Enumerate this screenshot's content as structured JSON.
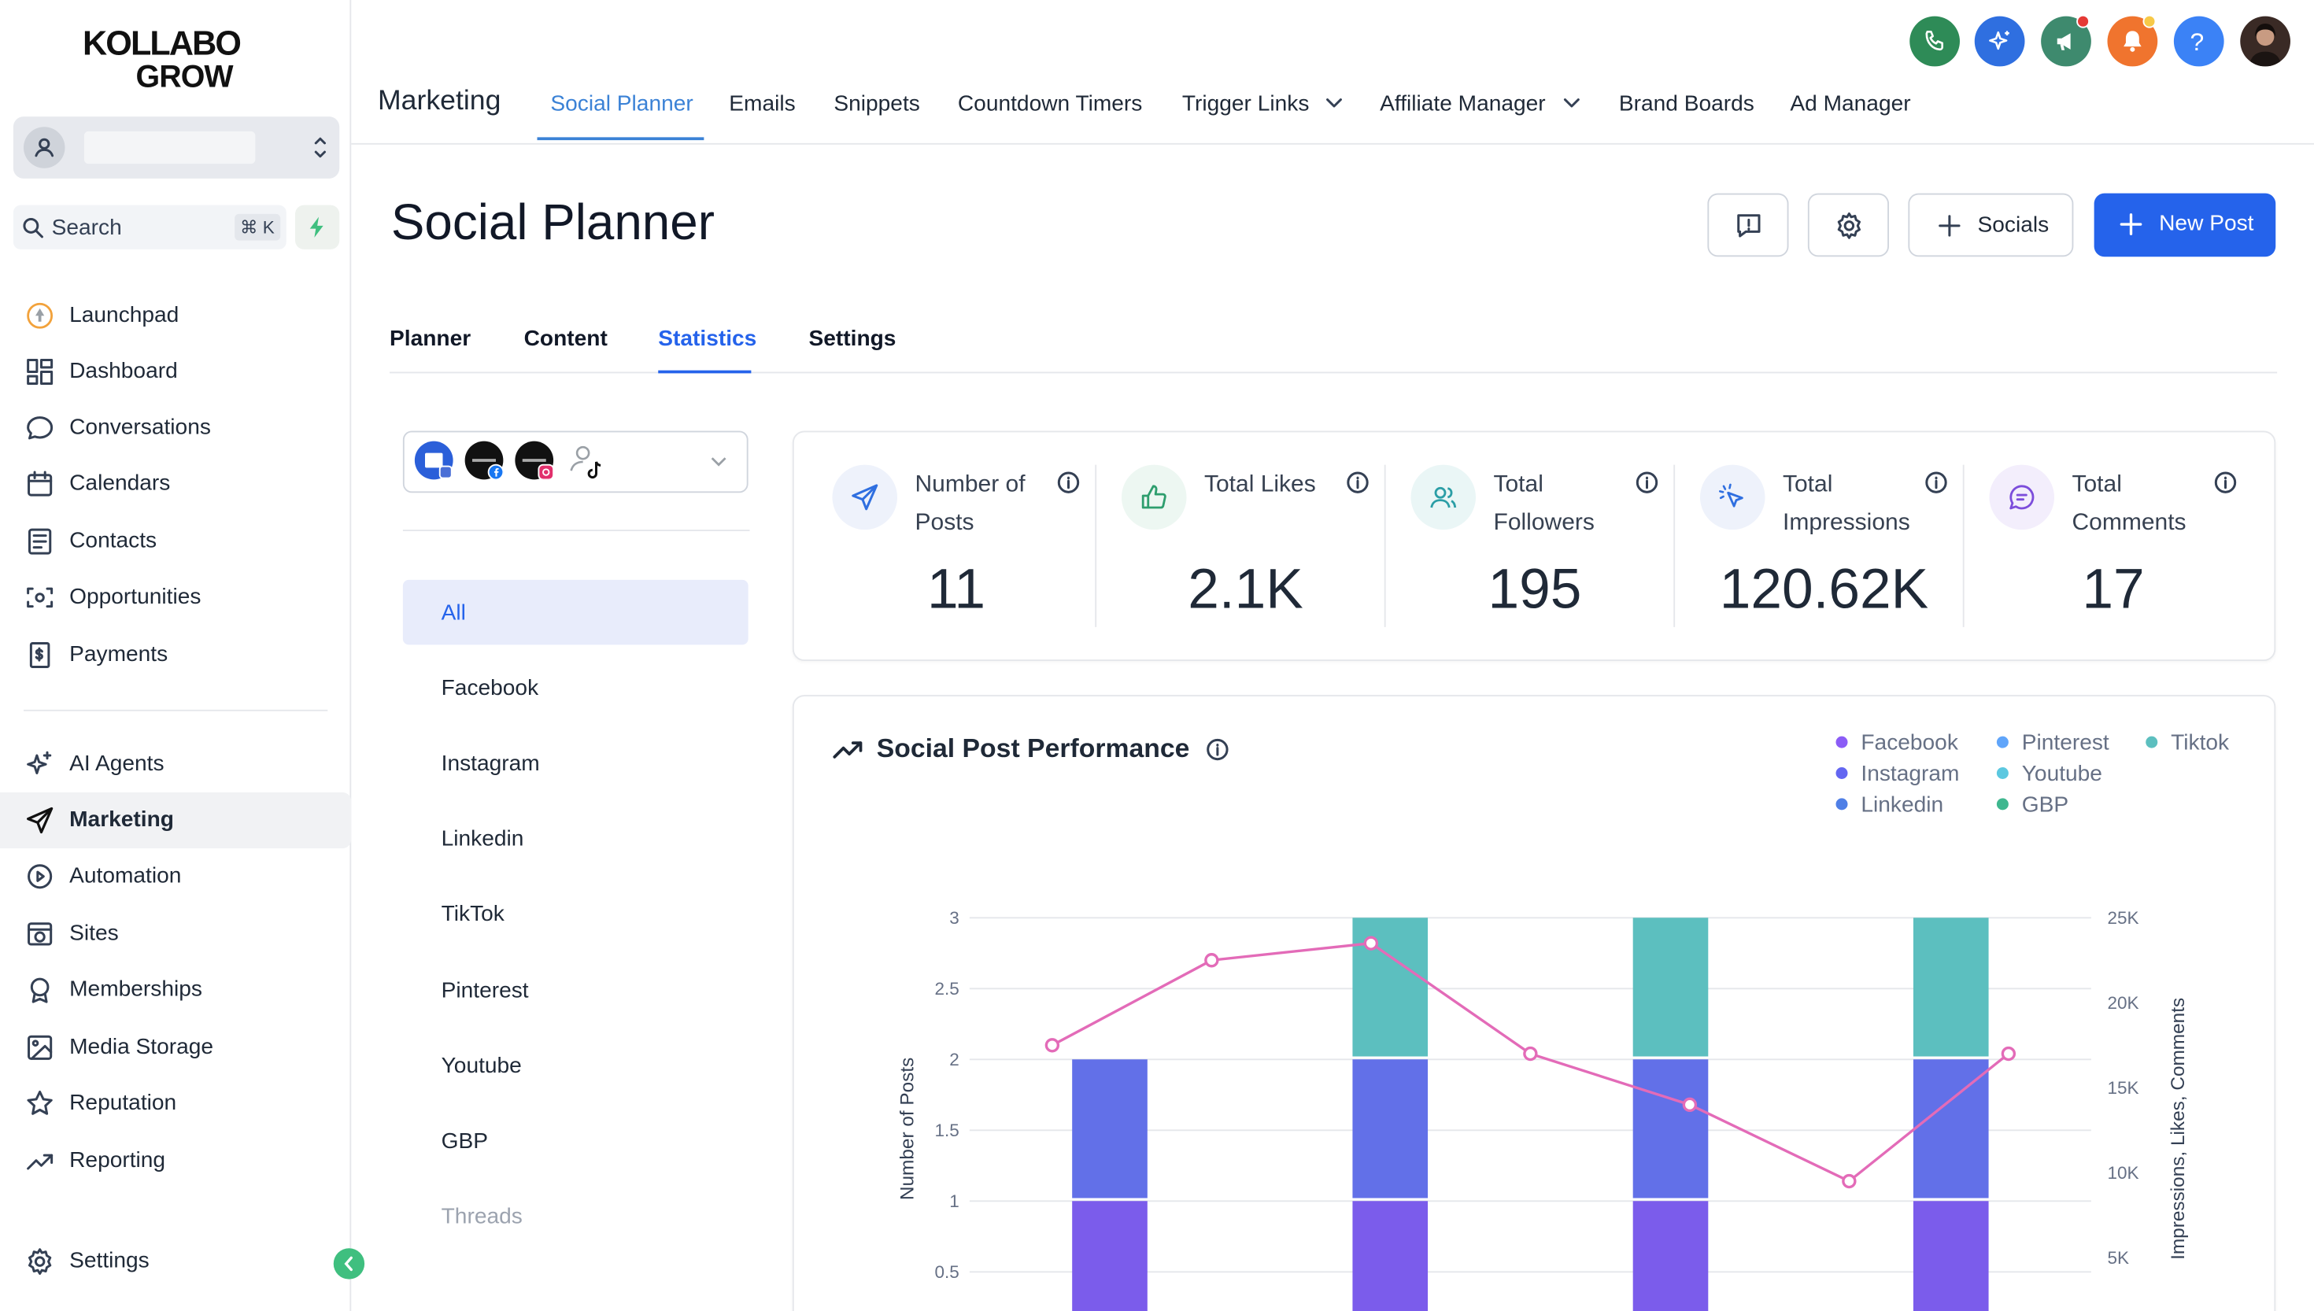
{
  "brand": {
    "logo_line1": "KOLLABO",
    "logo_line2": "GROW"
  },
  "search": {
    "label": "Search",
    "shortcut": "⌘ K"
  },
  "sidebar": {
    "items": [
      {
        "label": "Launchpad",
        "icon": "rocket-icon"
      },
      {
        "label": "Dashboard",
        "icon": "grid-icon"
      },
      {
        "label": "Conversations",
        "icon": "chat-icon"
      },
      {
        "label": "Calendars",
        "icon": "calendar-icon"
      },
      {
        "label": "Contacts",
        "icon": "contacts-icon"
      },
      {
        "label": "Opportunities",
        "icon": "opportunities-icon"
      },
      {
        "label": "Payments",
        "icon": "payments-icon"
      },
      {
        "label": "AI Agents",
        "icon": "sparkle-icon"
      },
      {
        "label": "Marketing",
        "icon": "send-icon"
      },
      {
        "label": "Automation",
        "icon": "automation-icon"
      },
      {
        "label": "Sites",
        "icon": "globe-icon"
      },
      {
        "label": "Memberships",
        "icon": "award-icon"
      },
      {
        "label": "Media Storage",
        "icon": "image-icon"
      },
      {
        "label": "Reputation",
        "icon": "star-icon"
      },
      {
        "label": "Reporting",
        "icon": "trend-icon"
      }
    ],
    "settings_label": "Settings"
  },
  "topbar": {
    "section": "Marketing",
    "tabs": [
      "Social Planner",
      "Emails",
      "Snippets",
      "Countdown Timers",
      "Trigger Links",
      "Affiliate Manager",
      "Brand Boards",
      "Ad Manager"
    ],
    "help": "?"
  },
  "page": {
    "title": "Social Planner",
    "socials_button": "Socials",
    "new_post_button": "New Post",
    "subtabs": [
      "Planner",
      "Content",
      "Statistics",
      "Settings"
    ]
  },
  "filters": [
    "All",
    "Facebook",
    "Instagram",
    "Linkedin",
    "TikTok",
    "Pinterest",
    "Youtube",
    "GBP",
    "Threads"
  ],
  "stats": [
    {
      "name": "Number of Posts",
      "value": "11"
    },
    {
      "name": "Total Likes",
      "value": "2.1K"
    },
    {
      "name": "Total Followers",
      "value": "195"
    },
    {
      "name": "Total Impressions",
      "value": "120.62K"
    },
    {
      "name": "Total Comments",
      "value": "17"
    }
  ],
  "performance": {
    "title": "Social Post Performance",
    "legend": [
      {
        "name": "Facebook",
        "color": "#8b5cf6"
      },
      {
        "name": "Instagram",
        "color": "#6366f1"
      },
      {
        "name": "Linkedin",
        "color": "#4f7fe6"
      },
      {
        "name": "Pinterest",
        "color": "#60a5fa"
      },
      {
        "name": "Youtube",
        "color": "#5cc8e0"
      },
      {
        "name": "GBP",
        "color": "#3fb78f"
      },
      {
        "name": "Tiktok",
        "color": "#5cbfbf"
      }
    ]
  },
  "chart_data": {
    "type": "bar",
    "title": "Social Post Performance",
    "ylabel": "Number of Posts",
    "y2label": "Impressions, Likes, Comments",
    "ylim": [
      0,
      3
    ],
    "y2lim": [
      0,
      25000
    ],
    "y_ticks": [
      "0.5",
      "1",
      "1.5",
      "2",
      "2.5",
      "3"
    ],
    "y2_ticks": [
      "5K",
      "10K",
      "15K",
      "20K",
      "25K"
    ],
    "bar_slots": 4,
    "series": [
      {
        "name": "Facebook",
        "color": "#7b5ceb",
        "values": [
          1,
          1,
          1,
          1
        ]
      },
      {
        "name": "Instagram",
        "color": "#6270e8",
        "values": [
          1,
          1,
          1,
          1
        ]
      },
      {
        "name": "Tiktok",
        "color": "#5cbfbf",
        "values": [
          0,
          1,
          1,
          1
        ]
      }
    ],
    "line": {
      "name": "Impressions",
      "color": "#e36bb8",
      "values": [
        17500,
        22500,
        23500,
        17000,
        14000,
        9500,
        17000
      ]
    },
    "legend_position": "top-right"
  }
}
